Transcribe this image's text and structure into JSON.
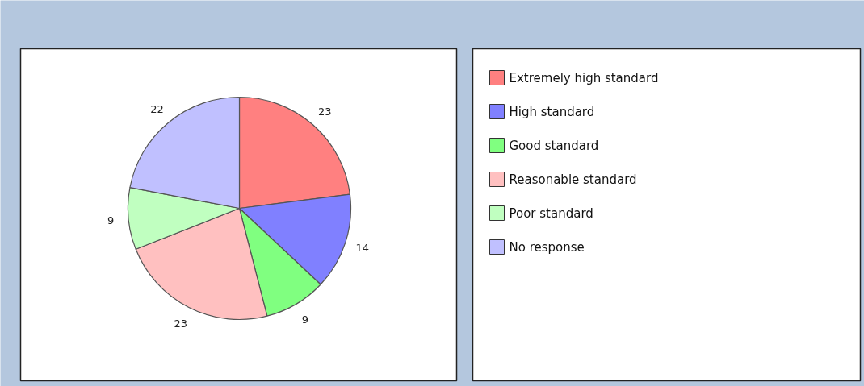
{
  "chart_data": {
    "type": "pie",
    "categories": [
      "Extremely high standard",
      "High standard",
      "Good standard",
      "Reasonable standard",
      "Poor standard",
      "No response"
    ],
    "values": [
      23,
      14,
      9,
      23,
      9,
      22
    ],
    "colors": [
      "#ff8080",
      "#8080ff",
      "#80ff80",
      "#ffc0c0",
      "#c0ffc0",
      "#c0c0ff"
    ],
    "data_labels": true,
    "legend": "right"
  }
}
